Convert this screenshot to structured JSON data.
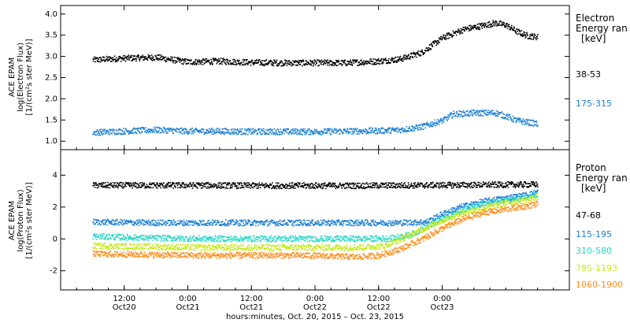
{
  "chart_data": [
    {
      "type": "scatter",
      "panel": "electron",
      "ylabel": [
        "ACE EPAM",
        "log(Electron Flux)",
        "[1/(cm²s ster MeV)]"
      ],
      "yticks": [
        "1.0",
        "1.5",
        "2.0",
        "2.5",
        "3.0",
        "3.5",
        "4.0"
      ],
      "ylim": [
        0.8,
        4.2
      ],
      "legend_title": [
        "Electron",
        "Energy ran",
        "[keV]"
      ],
      "series": [
        {
          "name": "38-53",
          "color": "#000000",
          "points": [
            [
              0,
              2.93
            ],
            [
              6,
              2.97
            ],
            [
              12,
              2.99
            ],
            [
              18,
              2.88
            ],
            [
              24,
              2.9
            ],
            [
              30,
              2.87
            ],
            [
              36,
              2.86
            ],
            [
              42,
              2.86
            ],
            [
              48,
              2.86
            ],
            [
              54,
              2.9
            ],
            [
              58,
              2.95
            ],
            [
              62,
              3.1
            ],
            [
              66,
              3.45
            ],
            [
              70,
              3.65
            ],
            [
              72,
              3.7
            ],
            [
              76,
              3.8
            ],
            [
              78,
              3.75
            ],
            [
              80,
              3.6
            ],
            [
              82,
              3.5
            ],
            [
              84,
              3.47
            ]
          ]
        },
        {
          "name": "175-315",
          "color": "#1a7fd4",
          "points": [
            [
              0,
              1.22
            ],
            [
              6,
              1.25
            ],
            [
              12,
              1.28
            ],
            [
              18,
              1.25
            ],
            [
              24,
              1.25
            ],
            [
              30,
              1.24
            ],
            [
              36,
              1.24
            ],
            [
              42,
              1.24
            ],
            [
              48,
              1.25
            ],
            [
              54,
              1.26
            ],
            [
              58,
              1.28
            ],
            [
              62,
              1.35
            ],
            [
              66,
              1.5
            ],
            [
              68,
              1.65
            ],
            [
              72,
              1.68
            ],
            [
              76,
              1.68
            ],
            [
              78,
              1.6
            ],
            [
              80,
              1.5
            ],
            [
              84,
              1.42
            ]
          ]
        }
      ]
    },
    {
      "type": "scatter",
      "panel": "proton",
      "ylabel": [
        "ACE EPAM",
        "log(Proton Flux)",
        "[1/(cm²s ster MeV)]"
      ],
      "yticks": [
        "-2",
        "0",
        "2",
        "4"
      ],
      "ylim": [
        -3.2,
        5.6
      ],
      "legend_title": [
        "Proton",
        "Energy ran",
        "[keV]"
      ],
      "series": [
        {
          "name": "47-68",
          "color": "#000000",
          "points": [
            [
              0,
              3.4
            ],
            [
              10,
              3.4
            ],
            [
              20,
              3.4
            ],
            [
              30,
              3.38
            ],
            [
              40,
              3.38
            ],
            [
              50,
              3.38
            ],
            [
              60,
              3.4
            ],
            [
              70,
              3.42
            ],
            [
              84,
              3.45
            ]
          ]
        },
        {
          "name": "115-195",
          "color": "#1a7fd4",
          "points": [
            [
              0,
              1.1
            ],
            [
              10,
              1.05
            ],
            [
              20,
              1.05
            ],
            [
              30,
              1.05
            ],
            [
              40,
              1.05
            ],
            [
              50,
              1.05
            ],
            [
              58,
              1.05
            ],
            [
              63,
              1.1
            ],
            [
              66,
              1.6
            ],
            [
              70,
              2.1
            ],
            [
              74,
              2.4
            ],
            [
              78,
              2.6
            ],
            [
              82,
              2.8
            ],
            [
              84,
              3.0
            ]
          ]
        },
        {
          "name": "310-580",
          "color": "#29d6c8",
          "points": [
            [
              0,
              0.2
            ],
            [
              10,
              0.1
            ],
            [
              20,
              0.05
            ],
            [
              30,
              0.05
            ],
            [
              40,
              0.05
            ],
            [
              50,
              0.05
            ],
            [
              56,
              0.05
            ],
            [
              60,
              0.3
            ],
            [
              63,
              0.8
            ],
            [
              66,
              1.3
            ],
            [
              70,
              1.9
            ],
            [
              74,
              2.2
            ],
            [
              78,
              2.45
            ],
            [
              82,
              2.65
            ],
            [
              84,
              2.8
            ]
          ]
        },
        {
          "name": "795-1193",
          "color": "#c6ea1a",
          "points": [
            [
              0,
              -0.4
            ],
            [
              10,
              -0.45
            ],
            [
              20,
              -0.5
            ],
            [
              30,
              -0.5
            ],
            [
              40,
              -0.5
            ],
            [
              50,
              -0.5
            ],
            [
              55,
              -0.4
            ],
            [
              58,
              0.0
            ],
            [
              62,
              0.6
            ],
            [
              66,
              1.2
            ],
            [
              70,
              1.7
            ],
            [
              74,
              2.0
            ],
            [
              78,
              2.3
            ],
            [
              82,
              2.5
            ],
            [
              84,
              2.7
            ]
          ]
        },
        {
          "name": "1060-1900",
          "color": "#ff8c1a",
          "points": [
            [
              0,
              -0.9
            ],
            [
              10,
              -0.95
            ],
            [
              20,
              -1.0
            ],
            [
              30,
              -1.0
            ],
            [
              40,
              -1.0
            ],
            [
              50,
              -1.1
            ],
            [
              54,
              -1.0
            ],
            [
              58,
              -0.6
            ],
            [
              62,
              0.0
            ],
            [
              66,
              0.7
            ],
            [
              70,
              1.3
            ],
            [
              74,
              1.7
            ],
            [
              78,
              1.9
            ],
            [
              82,
              2.1
            ],
            [
              84,
              2.25
            ]
          ]
        }
      ]
    }
  ],
  "x_axis": {
    "xlim": [
      -6,
      90
    ],
    "ticks": [
      {
        "x": 6,
        "time": "12:00",
        "date": "Oct20"
      },
      {
        "x": 18,
        "time": "0:00",
        "date": "Oct21"
      },
      {
        "x": 30,
        "time": "12:00",
        "date": "Oct21"
      },
      {
        "x": 42,
        "time": "0:00",
        "date": "Oct22"
      },
      {
        "x": 54,
        "time": "12:00",
        "date": "Oct22"
      },
      {
        "x": 66,
        "time": "0:00",
        "date": "Oct23"
      }
    ],
    "title": "hours:minutes, Oct. 20, 2015 – Oct. 23, 2015"
  }
}
